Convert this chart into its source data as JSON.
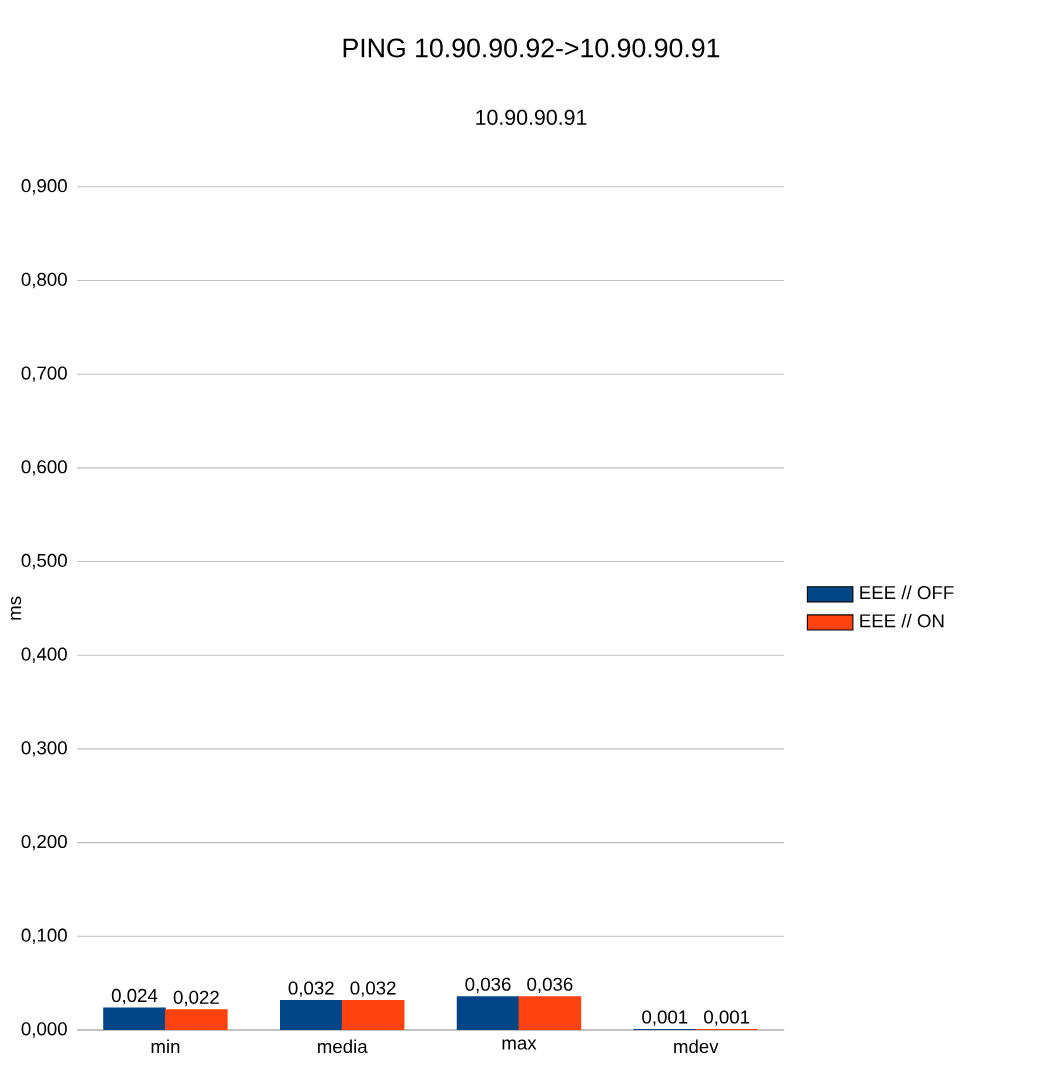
{
  "chart_data": {
    "type": "bar",
    "title": "PING 10.90.90.92->10.90.90.91",
    "subtitle": "10.90.90.91",
    "ylabel": "ms",
    "categories": [
      "min",
      "media",
      "max",
      "mdev"
    ],
    "series": [
      {
        "name": "EEE // OFF",
        "color": "#004586",
        "values": [
          0.024,
          0.032,
          0.036,
          0.001
        ],
        "value_labels": [
          "0,024",
          "0,032",
          "0,036",
          "0,001"
        ]
      },
      {
        "name": "EEE // ON",
        "color": "#ff420e",
        "values": [
          0.022,
          0.032,
          0.036,
          0.001
        ],
        "value_labels": [
          "0,022",
          "0,032",
          "0,036",
          "0,001"
        ]
      }
    ],
    "ylim": [
      0,
      0.9
    ],
    "yticks": [
      {
        "value": 0,
        "label": "0,000"
      },
      {
        "value": 0.1,
        "label": "0,100"
      },
      {
        "value": 0.2,
        "label": "0,200"
      },
      {
        "value": 0.3,
        "label": "0,300"
      },
      {
        "value": 0.4,
        "label": "0,400"
      },
      {
        "value": 0.5,
        "label": "0,500"
      },
      {
        "value": 0.6,
        "label": "0,600"
      },
      {
        "value": 0.7,
        "label": "0,700"
      },
      {
        "value": 0.8,
        "label": "0,800"
      },
      {
        "value": 0.9,
        "label": "0,900"
      }
    ],
    "grid": "y",
    "legend": "right"
  }
}
